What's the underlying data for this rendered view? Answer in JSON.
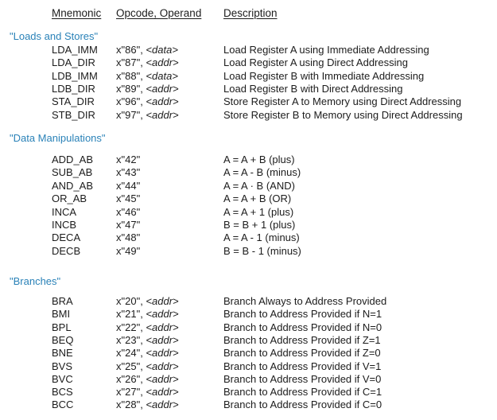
{
  "header": {
    "mnemonic": "Mnemonic",
    "opcode": "Opcode, Operand",
    "description": "Description"
  },
  "sections": [
    {
      "title": "\"Loads and Stores\"",
      "rows": [
        {
          "mnemonic": "LDA_IMM",
          "opcode": "x\"86\", ",
          "operand": "<data>",
          "description": "Load Register A using Immediate Addressing"
        },
        {
          "mnemonic": "LDA_DIR",
          "opcode": "x\"87\", ",
          "operand": "<addr>",
          "description": "Load Register A using Direct Addressing"
        },
        {
          "mnemonic": "LDB_IMM",
          "opcode": "x\"88\", ",
          "operand": "<data>",
          "description": "Load Register B with Immediate Addressing"
        },
        {
          "mnemonic": "LDB_DIR",
          "opcode": "x\"89\", ",
          "operand": "<addr>",
          "description": "Load Register B with Direct Addressing"
        },
        {
          "mnemonic": "STA_DIR",
          "opcode": "x\"96\", ",
          "operand": "<addr>",
          "description": "Store Register A to Memory using Direct Addressing"
        },
        {
          "mnemonic": "STB_DIR",
          "opcode": "x\"97\", ",
          "operand": "<addr>",
          "description": "Store Register B to Memory using Direct Addressing"
        }
      ]
    },
    {
      "title": "\"Data Manipulations\"",
      "rows": [
        {
          "mnemonic": "ADD_AB",
          "opcode": "x\"42\"",
          "operand": "",
          "description": "A = A + B (plus)"
        },
        {
          "mnemonic": "SUB_AB",
          "opcode": "x\"43\"",
          "operand": "",
          "description": "A = A - B (minus)"
        },
        {
          "mnemonic": "AND_AB",
          "opcode": "x\"44\"",
          "operand": "",
          "description": "A = A · B (AND)"
        },
        {
          "mnemonic": "OR_AB",
          "opcode": "x\"45\"",
          "operand": "",
          "description": "A = A + B (OR)"
        },
        {
          "mnemonic": "INCA",
          "opcode": "x\"46\"",
          "operand": "",
          "description": "A = A + 1 (plus)"
        },
        {
          "mnemonic": "INCB",
          "opcode": "x\"47\"",
          "operand": "",
          "description": "B = B + 1 (plus)"
        },
        {
          "mnemonic": "DECA",
          "opcode": "x\"48\"",
          "operand": "",
          "description": "A = A - 1 (minus)"
        },
        {
          "mnemonic": "DECB",
          "opcode": "x\"49\"",
          "operand": "",
          "description": "B = B - 1 (minus)"
        }
      ]
    },
    {
      "title": "\"Branches\"",
      "rows": [
        {
          "mnemonic": "BRA",
          "opcode": "x\"20\", ",
          "operand": "<addr>",
          "description": "Branch Always to Address Provided"
        },
        {
          "mnemonic": "BMI",
          "opcode": "x\"21\", ",
          "operand": "<addr>",
          "description": "Branch to Address Provided if N=1"
        },
        {
          "mnemonic": "BPL",
          "opcode": "x\"22\", ",
          "operand": "<addr>",
          "description": "Branch to Address Provided if N=0"
        },
        {
          "mnemonic": "BEQ",
          "opcode": "x\"23\", ",
          "operand": "<addr>",
          "description": "Branch to Address Provided if Z=1"
        },
        {
          "mnemonic": "BNE",
          "opcode": "x\"24\", ",
          "operand": "<addr>",
          "description": "Branch to Address Provided if Z=0"
        },
        {
          "mnemonic": "BVS",
          "opcode": "x\"25\", ",
          "operand": "<addr>",
          "description": "Branch to Address Provided if V=1"
        },
        {
          "mnemonic": "BVC",
          "opcode": "x\"26\", ",
          "operand": "<addr>",
          "description": "Branch to Address Provided if V=0"
        },
        {
          "mnemonic": "BCS",
          "opcode": "x\"27\", ",
          "operand": "<addr>",
          "description": "Branch to Address Provided if C=1"
        },
        {
          "mnemonic": "BCC",
          "opcode": "x\"28\", ",
          "operand": "<addr>",
          "description": "Branch to Address Provided if C=0"
        }
      ]
    }
  ],
  "colors": {
    "section_title": "#2a82b8",
    "text": "#1c1c1c",
    "background": "#ffffff"
  }
}
